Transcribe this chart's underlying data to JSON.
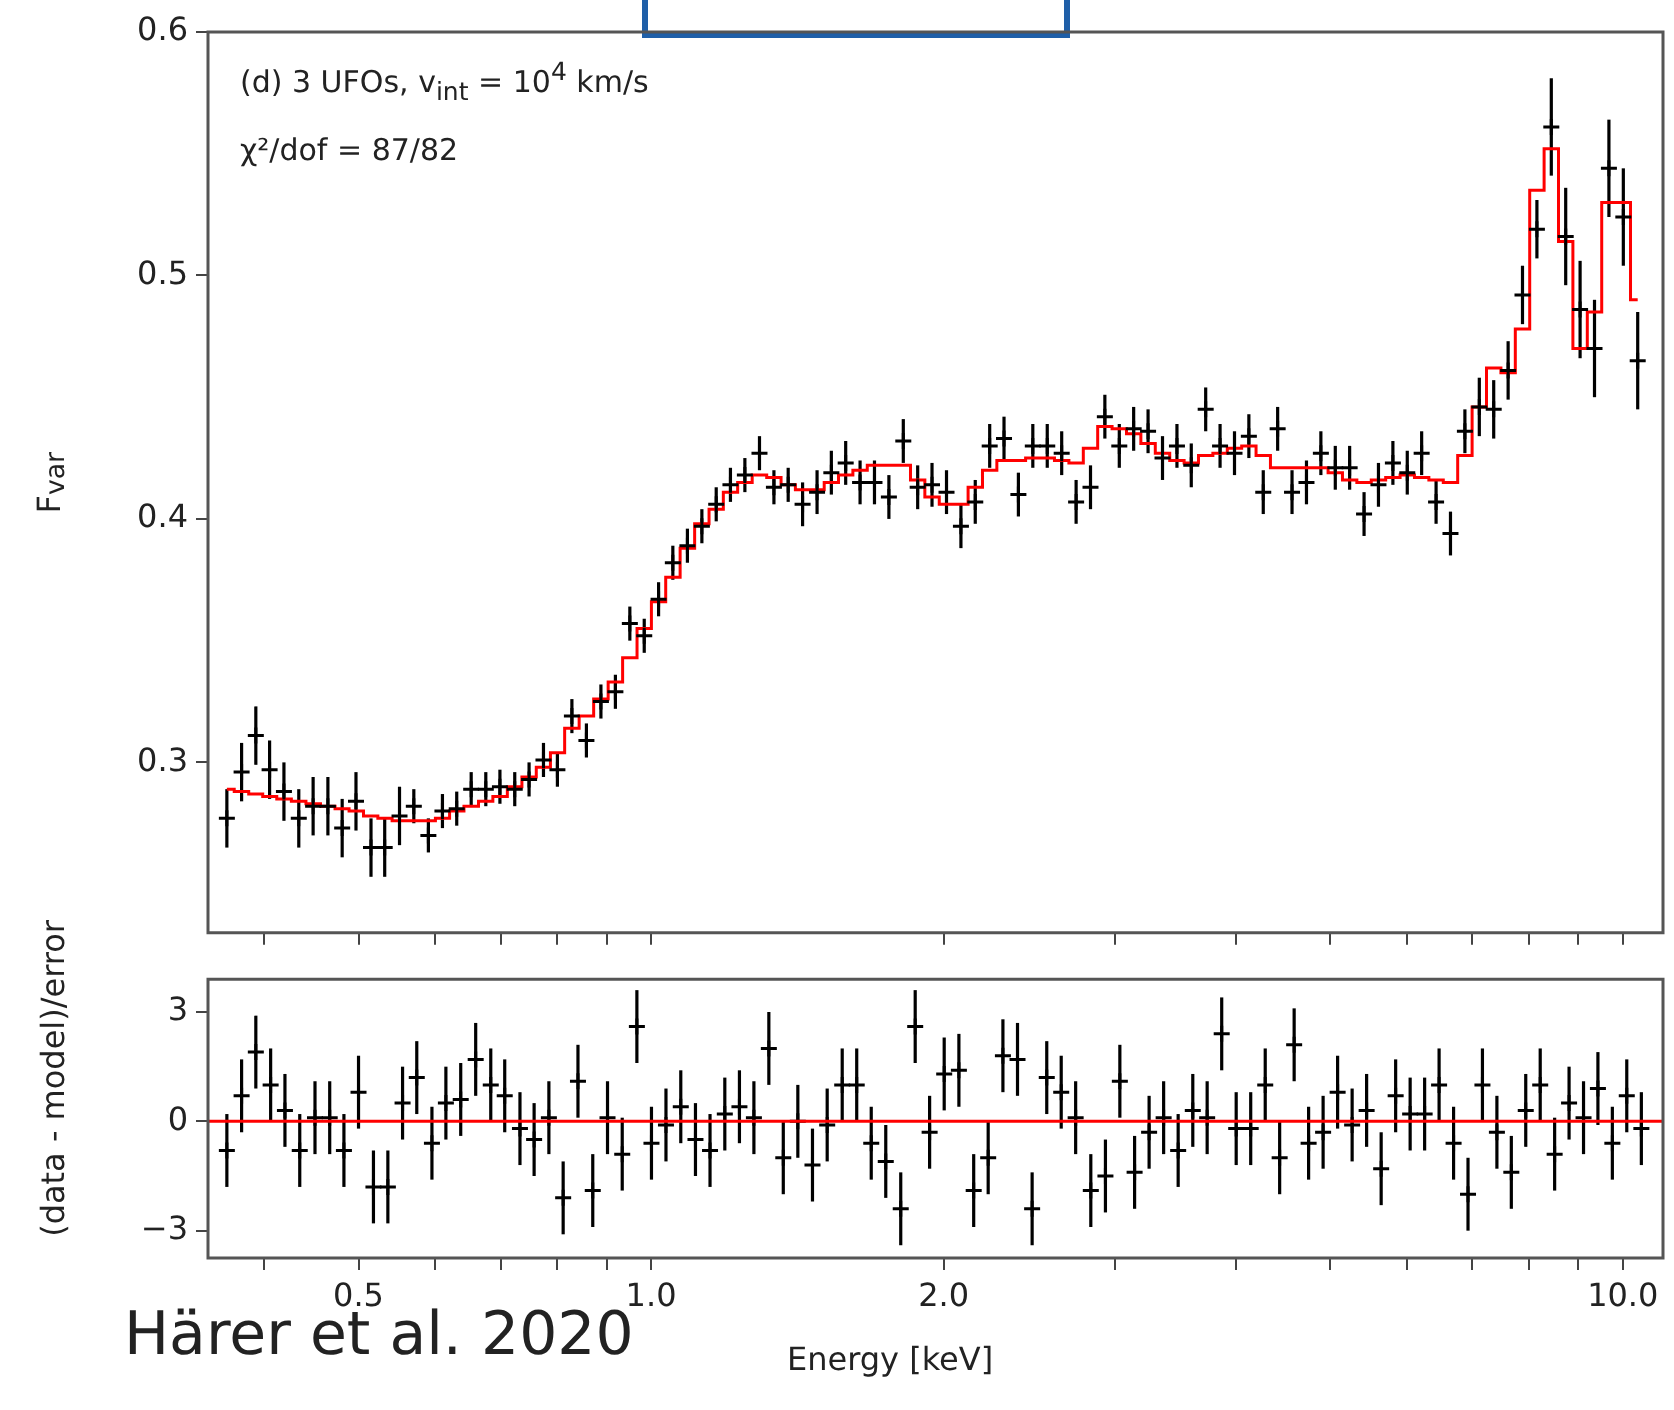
{
  "chart_data": [
    {
      "type": "scatter",
      "ylabel": "F$_{var}$",
      "annotations": [
        "(d) 3 UFOs, v$_{int}$ = 10$^{4}$ km/s",
        "χ²/dof = 87/82"
      ],
      "log": "x",
      "tick_labels": "y",
      "xlim": [
        0.35,
        11
      ],
      "xticks": [
        {
          "value": 0.4,
          "label": null
        },
        {
          "value": 0.5,
          "label": null
        },
        {
          "value": 0.6,
          "label": null
        },
        {
          "value": 0.7,
          "label": null
        },
        {
          "value": 0.8,
          "label": null
        },
        {
          "value": 0.9,
          "label": null
        },
        {
          "value": 1,
          "label": null
        },
        {
          "value": 2,
          "label": null
        },
        {
          "value": 3,
          "label": null
        },
        {
          "value": 4,
          "label": null
        },
        {
          "value": 5,
          "label": null
        },
        {
          "value": 6,
          "label": null
        },
        {
          "value": 7,
          "label": null
        },
        {
          "value": 8,
          "label": null
        },
        {
          "value": 9,
          "label": null
        },
        {
          "value": 10,
          "label": null
        }
      ],
      "ylim": [
        0.23,
        0.6
      ],
      "yticks": [
        0.3,
        0.4,
        0.5,
        0.6
      ],
      "x": [
        0.366,
        0.379,
        0.392,
        0.405,
        0.419,
        0.434,
        0.449,
        0.465,
        0.481,
        0.497,
        0.515,
        0.532,
        0.551,
        0.57,
        0.59,
        0.61,
        0.631,
        0.653,
        0.676,
        0.699,
        0.724,
        0.749,
        0.775,
        0.801,
        0.829,
        0.858,
        0.888,
        0.919,
        0.951,
        0.984,
        1.018,
        1.053,
        1.09,
        1.128,
        1.167,
        1.207,
        1.249,
        1.293,
        1.338,
        1.384,
        1.432,
        1.482,
        1.533,
        1.586,
        1.641,
        1.698,
        1.757,
        1.818,
        1.881,
        1.946,
        2.014,
        2.084,
        2.156,
        2.231,
        2.308,
        2.388,
        2.471,
        2.557,
        2.646,
        2.738,
        2.833,
        2.931,
        3.033,
        3.138,
        3.247,
        3.36,
        3.477,
        3.597,
        3.722,
        3.851,
        3.985,
        4.123,
        4.266,
        4.414,
        4.567,
        4.726,
        4.89,
        5.06,
        5.235,
        5.417,
        5.605,
        5.8,
        6.001,
        6.209,
        6.425,
        6.648,
        6.879,
        7.118,
        7.365,
        7.621,
        7.885,
        8.159,
        8.442,
        8.735,
        9.038,
        9.352,
        9.677,
        10.013,
        10.36
      ],
      "series": [
        {
          "color": "#000000",
          "marker": "cross",
          "values": [
            0.277,
            0.296,
            0.311,
            0.297,
            0.288,
            0.277,
            0.282,
            0.282,
            0.273,
            0.284,
            0.265,
            0.265,
            0.278,
            0.282,
            0.27,
            0.28,
            0.281,
            0.289,
            0.289,
            0.29,
            0.289,
            0.293,
            0.301,
            0.297,
            0.319,
            0.309,
            0.325,
            0.329,
            0.357,
            0.352,
            0.367,
            0.382,
            0.389,
            0.397,
            0.406,
            0.414,
            0.418,
            0.427,
            0.413,
            0.414,
            0.406,
            0.411,
            0.419,
            0.423,
            0.415,
            0.415,
            0.409,
            0.432,
            0.413,
            0.414,
            0.411,
            0.397,
            0.407,
            0.43,
            0.433,
            0.41,
            0.43,
            0.43,
            0.427,
            0.407,
            0.413,
            0.442,
            0.43,
            0.437,
            0.436,
            0.425,
            0.43,
            0.422,
            0.445,
            0.43,
            0.427,
            0.434,
            0.411,
            0.437,
            0.411,
            0.415,
            0.427,
            0.421,
            0.421,
            0.402,
            0.414,
            0.423,
            0.419,
            0.427,
            0.407,
            0.394,
            0.436,
            0.446,
            0.445,
            0.461,
            0.492,
            0.519,
            0.561,
            0.516,
            0.486,
            0.47,
            0.544,
            0.524,
            0.465
          ],
          "errors": [
            0.012,
            0.012,
            0.012,
            0.012,
            0.012,
            0.012,
            0.012,
            0.012,
            0.012,
            0.012,
            0.012,
            0.012,
            0.012,
            0.007,
            0.007,
            0.007,
            0.007,
            0.007,
            0.007,
            0.007,
            0.007,
            0.007,
            0.007,
            0.007,
            0.007,
            0.007,
            0.007,
            0.007,
            0.007,
            0.007,
            0.007,
            0.007,
            0.007,
            0.007,
            0.007,
            0.007,
            0.007,
            0.007,
            0.007,
            0.007,
            0.009,
            0.009,
            0.009,
            0.009,
            0.009,
            0.009,
            0.009,
            0.009,
            0.009,
            0.009,
            0.009,
            0.009,
            0.009,
            0.009,
            0.009,
            0.009,
            0.009,
            0.009,
            0.009,
            0.009,
            0.009,
            0.009,
            0.009,
            0.009,
            0.009,
            0.009,
            0.009,
            0.009,
            0.009,
            0.009,
            0.009,
            0.009,
            0.009,
            0.009,
            0.009,
            0.009,
            0.009,
            0.009,
            0.009,
            0.009,
            0.009,
            0.009,
            0.009,
            0.009,
            0.009,
            0.009,
            0.009,
            0.012,
            0.012,
            0.012,
            0.012,
            0.012,
            0.02,
            0.02,
            0.02,
            0.02,
            0.02,
            0.02,
            0.02
          ]
        },
        {
          "type": "step",
          "color": "#ff0000",
          "marker": "none",
          "values": [
            0.289,
            0.288,
            0.287,
            0.286,
            0.285,
            0.284,
            0.283,
            0.282,
            0.281,
            0.28,
            0.278,
            0.277,
            0.276,
            0.276,
            0.276,
            0.277,
            0.28,
            0.282,
            0.284,
            0.286,
            0.29,
            0.294,
            0.298,
            0.304,
            0.314,
            0.319,
            0.326,
            0.333,
            0.343,
            0.355,
            0.366,
            0.376,
            0.388,
            0.398,
            0.404,
            0.411,
            0.415,
            0.418,
            0.417,
            0.414,
            0.412,
            0.412,
            0.415,
            0.418,
            0.42,
            0.422,
            0.422,
            0.422,
            0.416,
            0.409,
            0.406,
            0.406,
            0.413,
            0.42,
            0.424,
            0.424,
            0.425,
            0.425,
            0.424,
            0.423,
            0.429,
            0.438,
            0.437,
            0.435,
            0.431,
            0.427,
            0.424,
            0.423,
            0.426,
            0.427,
            0.429,
            0.43,
            0.426,
            0.421,
            0.421,
            0.421,
            0.421,
            0.419,
            0.416,
            0.415,
            0.416,
            0.417,
            0.418,
            0.417,
            0.416,
            0.415,
            0.426,
            0.446,
            0.462,
            0.46,
            0.478,
            0.535,
            0.552,
            0.514,
            0.47,
            0.485,
            0.53,
            0.53,
            0.49
          ]
        }
      ]
    },
    {
      "type": "scatter",
      "xlabel": "Energy [keV]",
      "ylabel": "(data - model)/error",
      "annotations": [
        "Härer et al. 2020"
      ],
      "log": "x",
      "marker": "cross",
      "xlim": [
        0.35,
        11
      ],
      "xticks": [
        {
          "value": 0.4,
          "label": null
        },
        0.5,
        {
          "value": 0.6,
          "label": null
        },
        {
          "value": 0.7,
          "label": null
        },
        {
          "value": 0.8,
          "label": null
        },
        {
          "value": 0.9,
          "label": null
        },
        {
          "value": 1,
          "label": "1.0"
        },
        {
          "value": 2,
          "label": "2.0"
        },
        {
          "value": 3,
          "label": null
        },
        {
          "value": 4,
          "label": null
        },
        {
          "value": 5,
          "label": null
        },
        {
          "value": 6,
          "label": null
        },
        {
          "value": 7,
          "label": null
        },
        {
          "value": 8,
          "label": null
        },
        {
          "value": 9,
          "label": null
        },
        {
          "value": 10,
          "label": "10.0"
        }
      ],
      "ylim": [
        -3.75,
        3.9
      ],
      "yticks": [
        {
          "value": -3,
          "label": "−3"
        },
        0,
        3
      ],
      "ref_lines": [
        {
          "axis": "y",
          "value": 0,
          "color": "#ff0000"
        }
      ],
      "series": [
        {
          "color": "#000000",
          "x": [
            0.366,
            0.379,
            0.392,
            0.406,
            0.42,
            0.435,
            0.451,
            0.467,
            0.483,
            0.5,
            0.518,
            0.536,
            0.555,
            0.574,
            0.595,
            0.615,
            0.637,
            0.66,
            0.684,
            0.707,
            0.733,
            0.758,
            0.785,
            0.812,
            0.841,
            0.871,
            0.902,
            0.934,
            0.967,
            1.001,
            1.036,
            1.073,
            1.111,
            1.15,
            1.191,
            1.233,
            1.276,
            1.322,
            1.368,
            1.416,
            1.466,
            1.518,
            1.573,
            1.628,
            1.685,
            1.744,
            1.807,
            1.87,
            1.935,
            2.003,
            2.074,
            2.148,
            2.223,
            2.302,
            2.383,
            2.467,
            2.554,
            2.643,
            2.735,
            2.835,
            2.935,
            3.037,
            3.145,
            3.255,
            3.369,
            3.487,
            3.61,
            3.735,
            3.866,
            4.001,
            4.141,
            4.286,
            4.435,
            4.59,
            4.75,
            4.916,
            5.088,
            5.266,
            5.45,
            5.641,
            5.838,
            6.042,
            6.253,
            6.471,
            6.697,
            6.93,
            7.171,
            7.421,
            7.679,
            7.946,
            8.223,
            8.509,
            8.805,
            9.112,
            9.428,
            9.756,
            10.095,
            10.45
          ],
          "values": [
            -0.8,
            0.7,
            1.9,
            1.0,
            0.3,
            -0.8,
            0.1,
            0.1,
            -0.8,
            0.8,
            -1.8,
            -1.8,
            0.5,
            1.2,
            -0.6,
            0.5,
            0.6,
            1.7,
            1.0,
            0.7,
            -0.2,
            -0.5,
            0.1,
            -2.1,
            1.1,
            -1.9,
            0.1,
            -0.9,
            2.6,
            -0.6,
            -0.1,
            0.4,
            -0.5,
            -0.8,
            0.2,
            0.4,
            0.1,
            2.0,
            -1.0,
            0.0,
            -1.2,
            -0.1,
            1.0,
            1.0,
            -0.6,
            -1.1,
            -2.4,
            2.6,
            -0.3,
            1.3,
            1.4,
            -1.9,
            -1.0,
            1.8,
            1.7,
            -2.4,
            1.2,
            0.8,
            0.1,
            -1.9,
            -1.5,
            1.1,
            -1.4,
            -0.3,
            0.1,
            -0.8,
            0.3,
            0.1,
            2.4,
            -0.2,
            -0.2,
            1.0,
            -1.0,
            2.1,
            -0.6,
            -0.3,
            0.8,
            -0.1,
            0.3,
            -1.3,
            0.7,
            0.2,
            0.2,
            1.0,
            -0.6,
            -2.0,
            1.0,
            -0.3,
            -1.4,
            0.3,
            1.0,
            -0.9,
            0.5,
            0.1,
            0.9,
            -0.6,
            0.7,
            -0.2
          ],
          "errors": [
            1,
            1,
            1,
            1,
            1,
            1,
            1,
            1,
            1,
            1,
            1,
            1,
            1,
            1,
            1,
            1,
            1,
            1,
            1,
            1,
            1,
            1,
            1,
            1,
            1,
            1,
            1,
            1,
            1,
            1,
            1,
            1,
            1,
            1,
            1,
            1,
            1,
            1,
            1,
            1,
            1,
            1,
            1,
            1,
            1,
            1,
            1,
            1,
            1,
            1,
            1,
            1,
            1,
            1,
            1,
            1,
            1,
            1,
            1,
            1,
            1,
            1,
            1,
            1,
            1,
            1,
            1,
            1,
            1,
            1,
            1,
            1,
            1,
            1,
            1,
            1,
            1,
            1,
            1,
            1,
            1,
            1,
            1,
            1,
            1,
            1,
            1,
            1,
            1,
            1,
            1,
            1,
            1,
            1,
            1,
            1,
            1,
            1
          ]
        }
      ]
    }
  ]
}
